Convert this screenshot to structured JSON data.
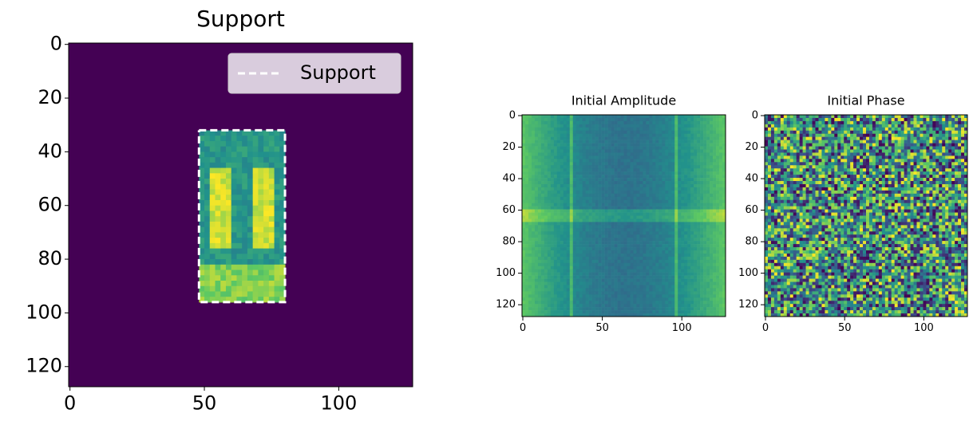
{
  "chart_data": [
    {
      "type": "image",
      "title": "Support",
      "cmap": "viridis",
      "xlim": [
        -0.5,
        127.5
      ],
      "ylim": [
        127.5,
        -0.5
      ],
      "xticks": [
        0,
        50,
        100
      ],
      "yticks": [
        0,
        20,
        40,
        60,
        80,
        100,
        120
      ],
      "legend": "upper right",
      "series": [
        {
          "name": "Support",
          "color": "#ffffff",
          "x": [
            48,
            80,
            80,
            48,
            48
          ],
          "y": [
            32,
            32,
            96,
            96,
            32
          ]
        }
      ]
    },
    {
      "type": "image",
      "title": "Initial Amplitude",
      "cmap": "viridis",
      "xlim": [
        -0.5,
        127.5
      ],
      "ylim": [
        127.5,
        -0.5
      ],
      "xticks": [
        0,
        50,
        100
      ],
      "yticks": [
        0,
        20,
        40,
        60,
        80,
        100,
        120
      ]
    },
    {
      "type": "image",
      "title": "Initial Phase",
      "cmap": "viridis",
      "xlim": [
        -0.5,
        127.5
      ],
      "ylim": [
        127.5,
        -0.5
      ],
      "xticks": [
        0,
        50,
        100
      ],
      "yticks": [
        0,
        20,
        40,
        60,
        80,
        100,
        120
      ]
    }
  ]
}
